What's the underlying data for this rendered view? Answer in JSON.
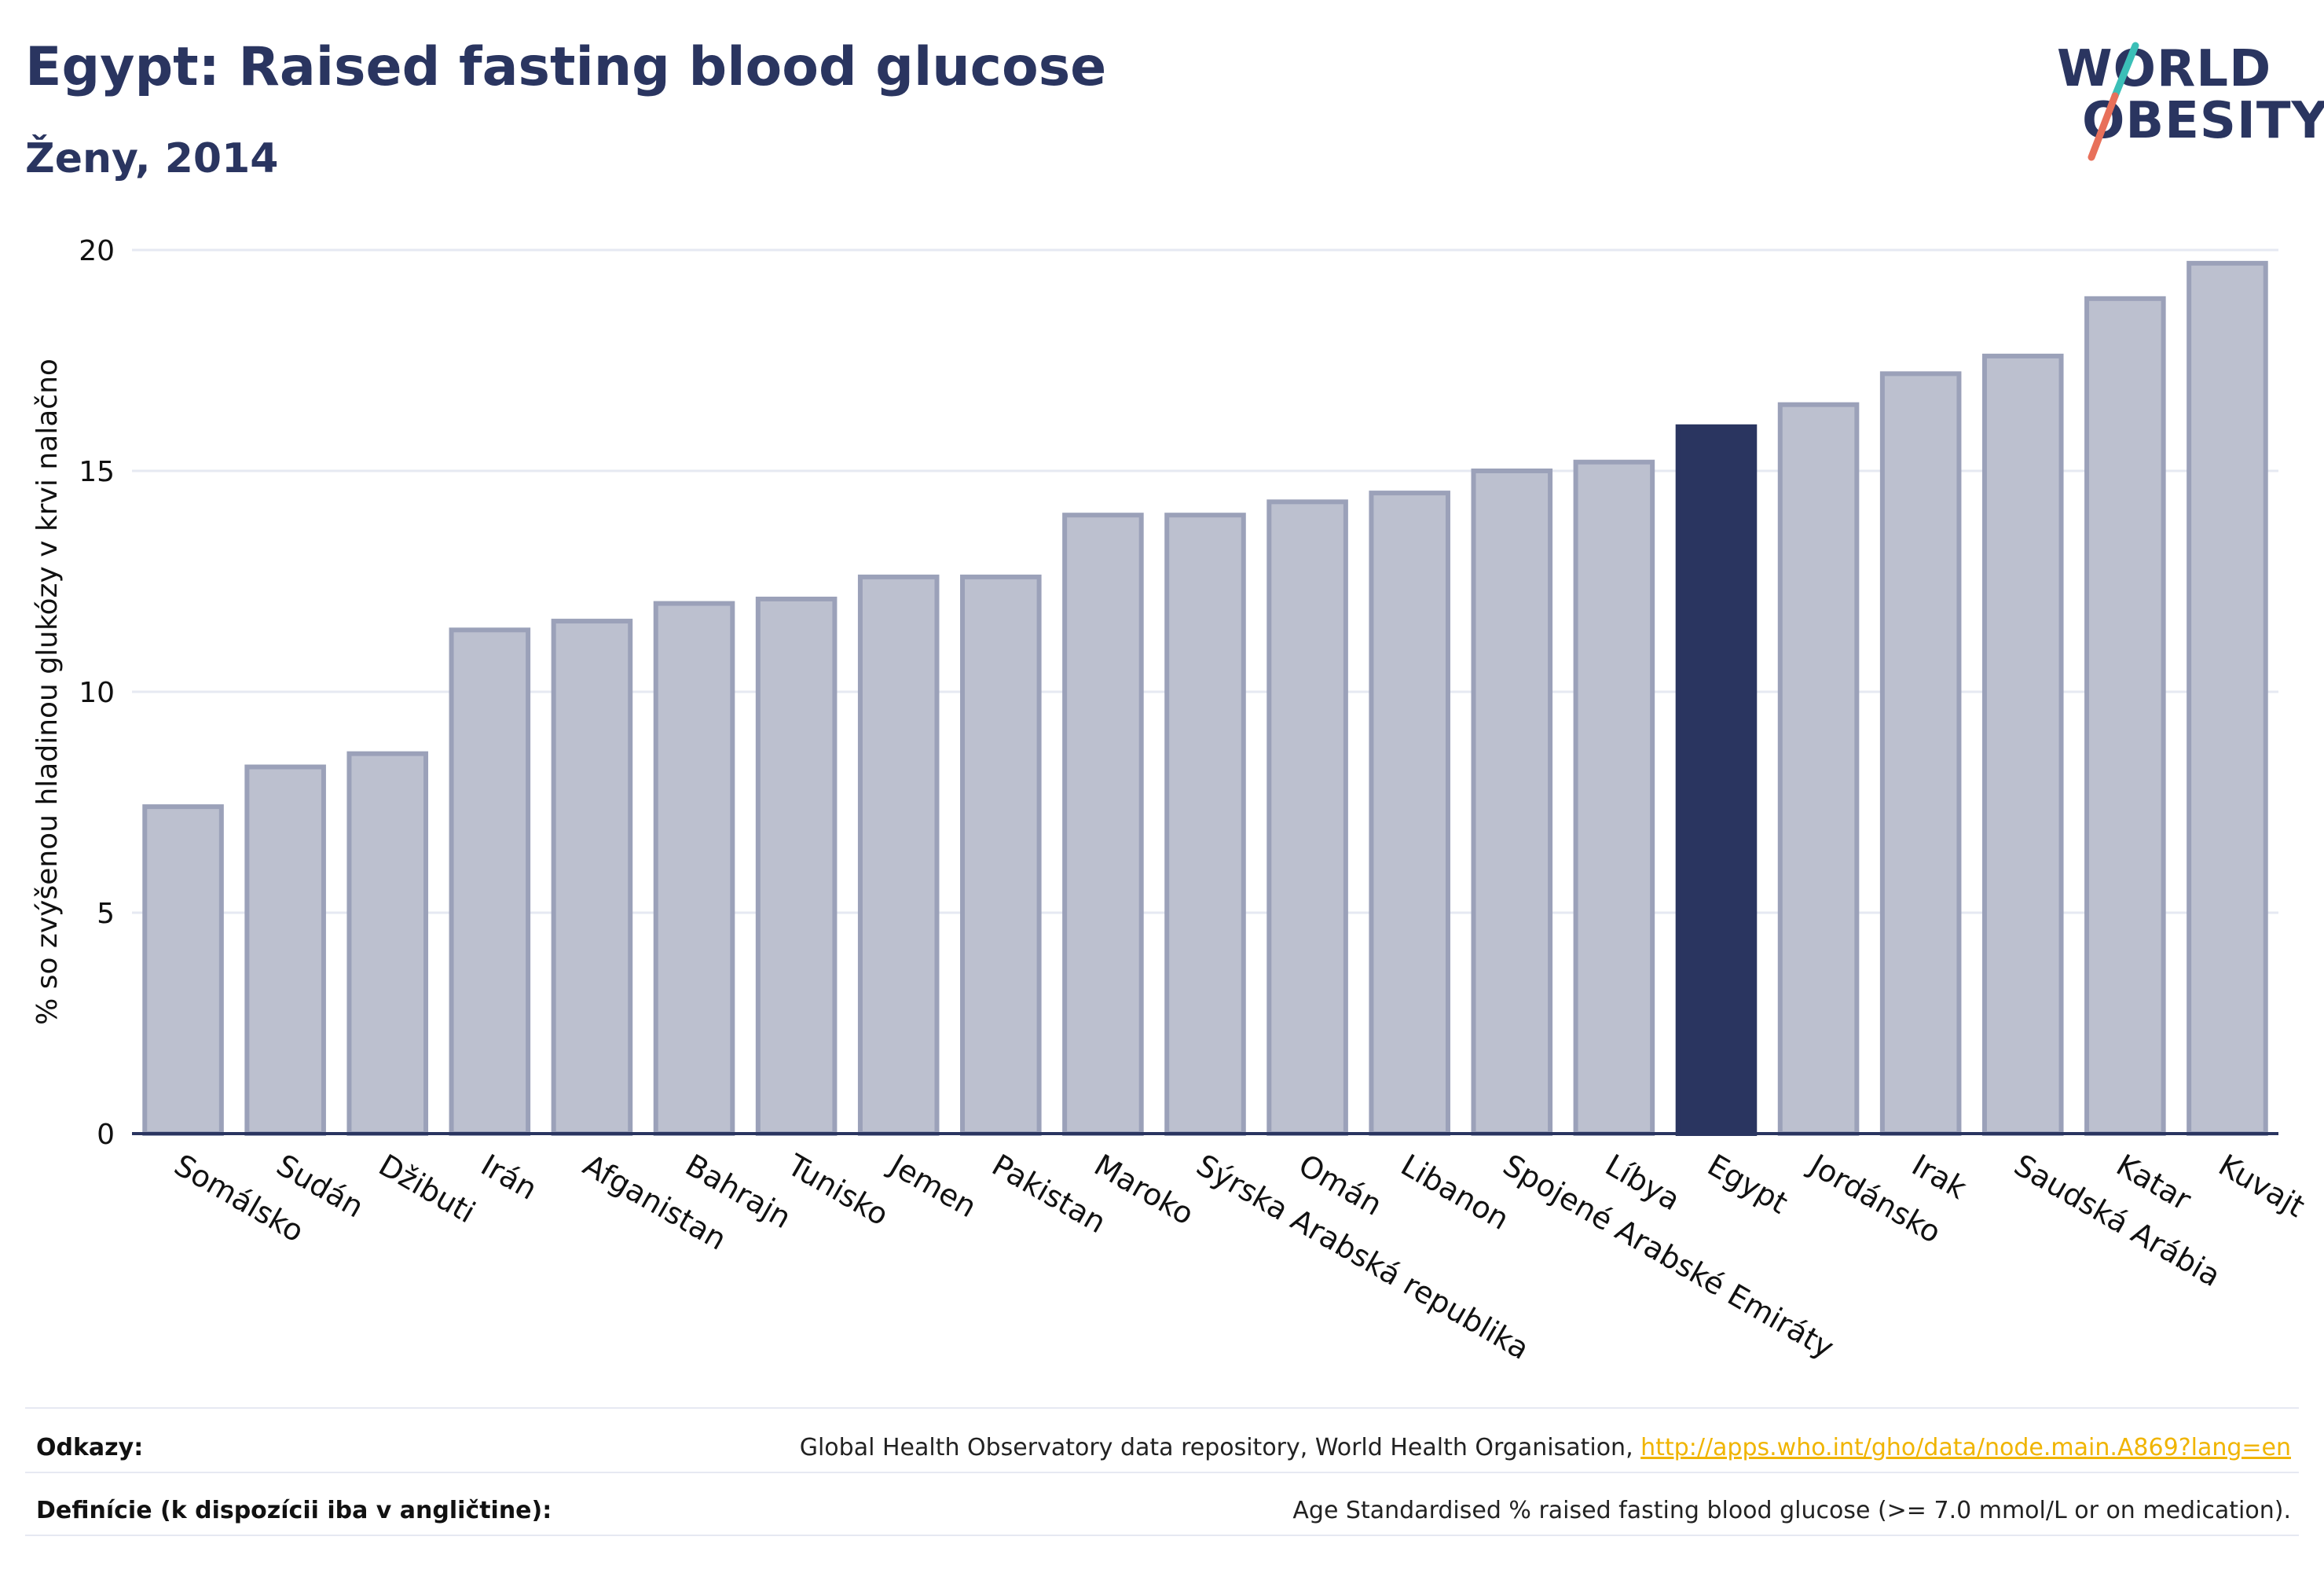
{
  "header": {
    "title": "Egypt: Raised fasting blood glucose",
    "subtitle": "Ženy, 2014"
  },
  "logo": {
    "line1": "WORLD",
    "line2": "OBESITY",
    "colors": {
      "text": "#2a3560",
      "slash_top": "#3bbfb7",
      "slash_bottom": "#e8705a"
    }
  },
  "chart_data": {
    "type": "bar",
    "title": "Egypt: Raised fasting blood glucose",
    "subtitle": "Ženy, 2014",
    "xlabel": "",
    "ylabel": "% so zvýšenou hladinou glukózy v krvi nalačno",
    "ylim": [
      0,
      20
    ],
    "yticks": [
      0,
      5,
      10,
      15,
      20
    ],
    "grid": true,
    "categories": [
      "Somálsko",
      "Sudán",
      "Džibuti",
      "Irán",
      "Afganistan",
      "Bahrajn",
      "Tunisko",
      "Jemen",
      "Pakistan",
      "Maroko",
      "Sýrska Arabská republika",
      "Omán",
      "Libanon",
      "Spojené Arabské Emiráty",
      "Líbya",
      "Egypt",
      "Jordánsko",
      "Irak",
      "Saudská Arábia",
      "Katar",
      "Kuvajt"
    ],
    "values": [
      7.4,
      8.3,
      8.6,
      11.4,
      11.6,
      12.0,
      12.1,
      12.6,
      12.6,
      14.0,
      14.0,
      14.3,
      14.5,
      15.0,
      15.2,
      16.0,
      16.5,
      17.2,
      17.6,
      18.9,
      19.7
    ],
    "highlight": "Egypt",
    "colors": {
      "bar_fill": "#bcc0cf",
      "bar_stroke": "#9ba1b9",
      "highlight_fill": "#2a3560",
      "axis": "#2a3560",
      "grid": "#e6e9f2"
    }
  },
  "footer": {
    "references_label": "Odkazy:",
    "references_text": "Global Health Observatory data repository, World Health Organisation, ",
    "references_link": "http://apps.who.int/gho/data/node.main.A869?lang=en",
    "definitions_label": "Definície (k dispozícii iba v angličtine):",
    "definitions_text": "Age Standardised % raised fasting blood glucose (>= 7.0 mmol/L or on medication)."
  }
}
